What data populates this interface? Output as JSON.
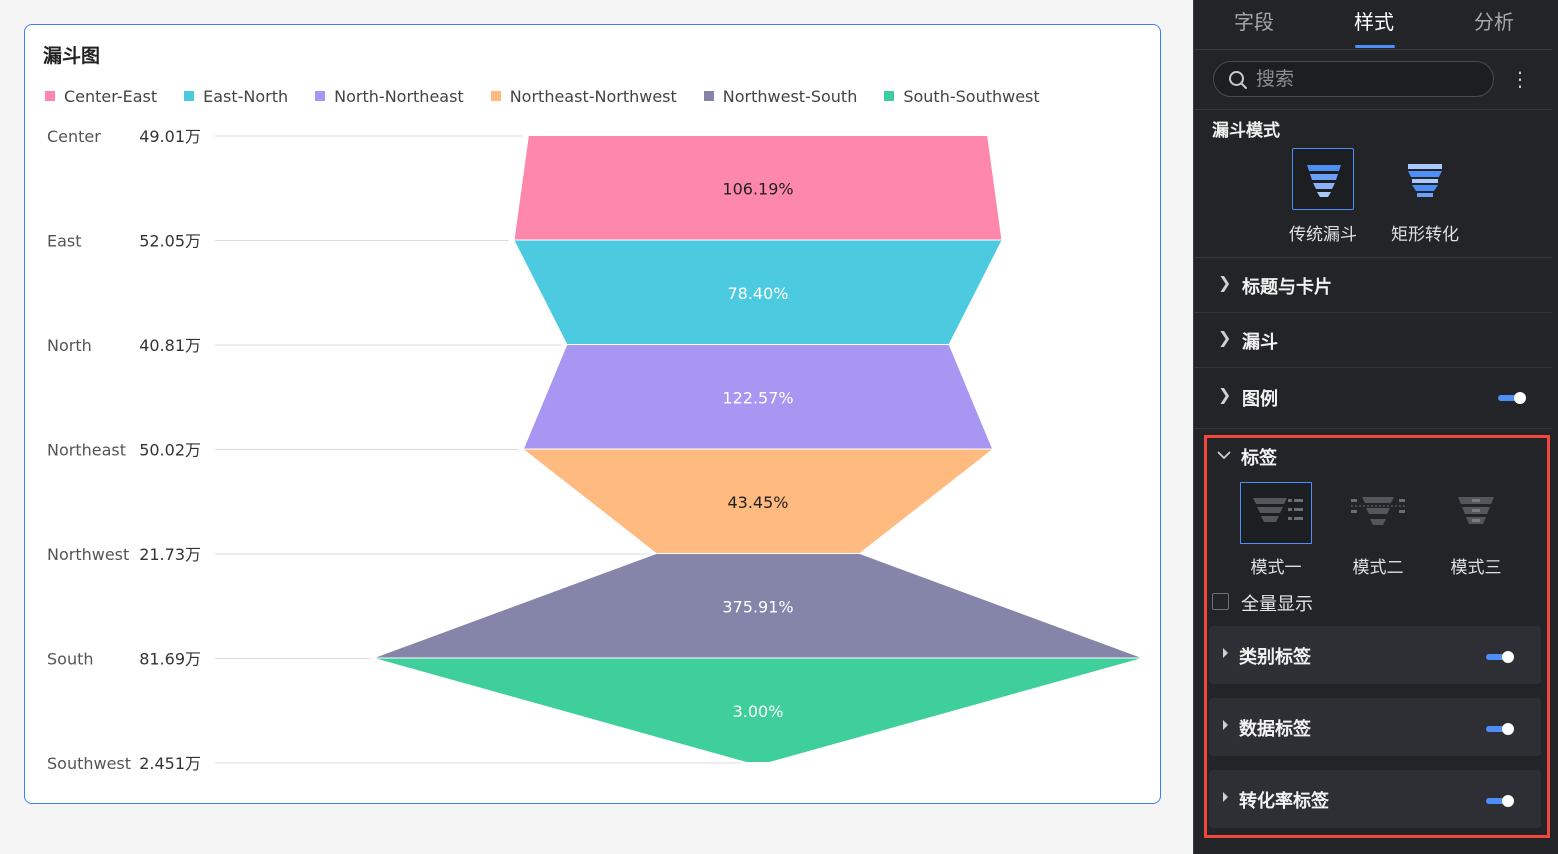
{
  "chart": {
    "title": "漏斗图"
  },
  "chart_data": {
    "type": "funnel",
    "title": "漏斗图",
    "stages": [
      {
        "name": "Center",
        "value": 49.01,
        "value_label": "49.01万"
      },
      {
        "name": "East",
        "value": 52.05,
        "value_label": "52.05万"
      },
      {
        "name": "North",
        "value": 40.81,
        "value_label": "40.81万"
      },
      {
        "name": "Northeast",
        "value": 50.02,
        "value_label": "50.02万"
      },
      {
        "name": "Northwest",
        "value": 21.73,
        "value_label": "21.73万"
      },
      {
        "name": "South",
        "value": 81.69,
        "value_label": "81.69万"
      },
      {
        "name": "Southwest",
        "value": 2.451,
        "value_label": "2.451万"
      }
    ],
    "segments": [
      {
        "name": "Center-East",
        "conversion": "106.19%",
        "color": "#fe88ac",
        "label_color": "#222222"
      },
      {
        "name": "East-North",
        "conversion": "78.40%",
        "color": "#4ccadf",
        "label_color": "#ffffff"
      },
      {
        "name": "North-Northeast",
        "conversion": "122.57%",
        "color": "#a796f2",
        "label_color": "#ffffff"
      },
      {
        "name": "Northeast-Northwest",
        "conversion": "43.45%",
        "color": "#ffba80",
        "label_color": "#222222"
      },
      {
        "name": "Northwest-South",
        "conversion": "375.91%",
        "color": "#8585aa",
        "label_color": "#ffffff"
      },
      {
        "name": "South-Southwest",
        "conversion": "3.00%",
        "color": "#3ecf9b",
        "label_color": "#ffffff"
      }
    ],
    "unit": "万"
  },
  "panel": {
    "tabs": [
      {
        "label": "字段",
        "active": false
      },
      {
        "label": "样式",
        "active": true
      },
      {
        "label": "分析",
        "active": false
      }
    ],
    "search": {
      "placeholder": "搜索",
      "icon": "search-icon"
    },
    "more_icon": "⋮",
    "funnel_mode": {
      "title": "漏斗模式",
      "options": [
        {
          "label": "传统漏斗",
          "selected": true
        },
        {
          "label": "矩形转化",
          "selected": false
        }
      ]
    },
    "sections": {
      "title_card": "标题与卡片",
      "funnel": "漏斗",
      "legend": "图例",
      "label": "标签"
    },
    "label_modes": [
      {
        "label": "模式一",
        "selected": true
      },
      {
        "label": "模式二",
        "selected": false
      },
      {
        "label": "模式三",
        "selected": false
      }
    ],
    "show_all": "全量显示",
    "sub_sections": [
      {
        "label": "类别标签",
        "enabled": true
      },
      {
        "label": "数据标签",
        "enabled": true
      },
      {
        "label": "转化率标签",
        "enabled": true
      }
    ],
    "accent": "#4e8ef7",
    "highlight": "#f0463e"
  }
}
